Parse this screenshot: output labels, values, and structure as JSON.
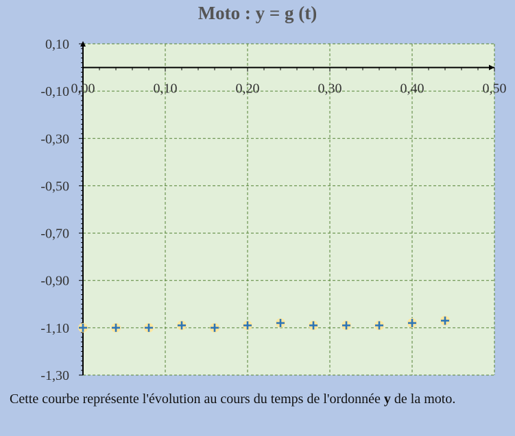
{
  "chart_data": {
    "type": "scatter",
    "title": "Moto : y = g (t)",
    "xlabel": "",
    "ylabel": "",
    "xlim": [
      0,
      0.5
    ],
    "ylim": [
      -1.3,
      0.1
    ],
    "grid": true,
    "x_ticks": [
      0,
      0.1,
      0.2,
      0.3,
      0.4,
      0.5
    ],
    "x_tick_labels": [
      "0,00",
      "0,10",
      "0,20",
      "0,30",
      "0,40",
      "0,50"
    ],
    "y_ticks": [
      0.1,
      -0.1,
      -0.3,
      -0.5,
      -0.7,
      -0.9,
      -1.1,
      -1.3
    ],
    "y_tick_labels": [
      "0,10",
      "-0,10",
      "-0,30",
      "-0,50",
      "-0,70",
      "-0,90",
      "-1,10",
      "-1,30"
    ],
    "series": [
      {
        "x": [
          0.0,
          0.04,
          0.08,
          0.12,
          0.16,
          0.2,
          0.24,
          0.28,
          0.32,
          0.36,
          0.4,
          0.44
        ],
        "y": [
          -1.1,
          -1.1,
          -1.1,
          -1.09,
          -1.1,
          -1.09,
          -1.08,
          -1.09,
          -1.09,
          -1.09,
          -1.08,
          -1.07
        ]
      }
    ]
  },
  "caption": {
    "before": "Cette courbe représente l'évolution au cours du temps de l'ordonnée ",
    "bold": "y",
    "after": " de la moto."
  },
  "colors": {
    "plot_background": "#e2efd9",
    "grid": "#548235",
    "marker": "#2e75b6",
    "marker_halo": "#ffe699",
    "axis": "#000000"
  }
}
